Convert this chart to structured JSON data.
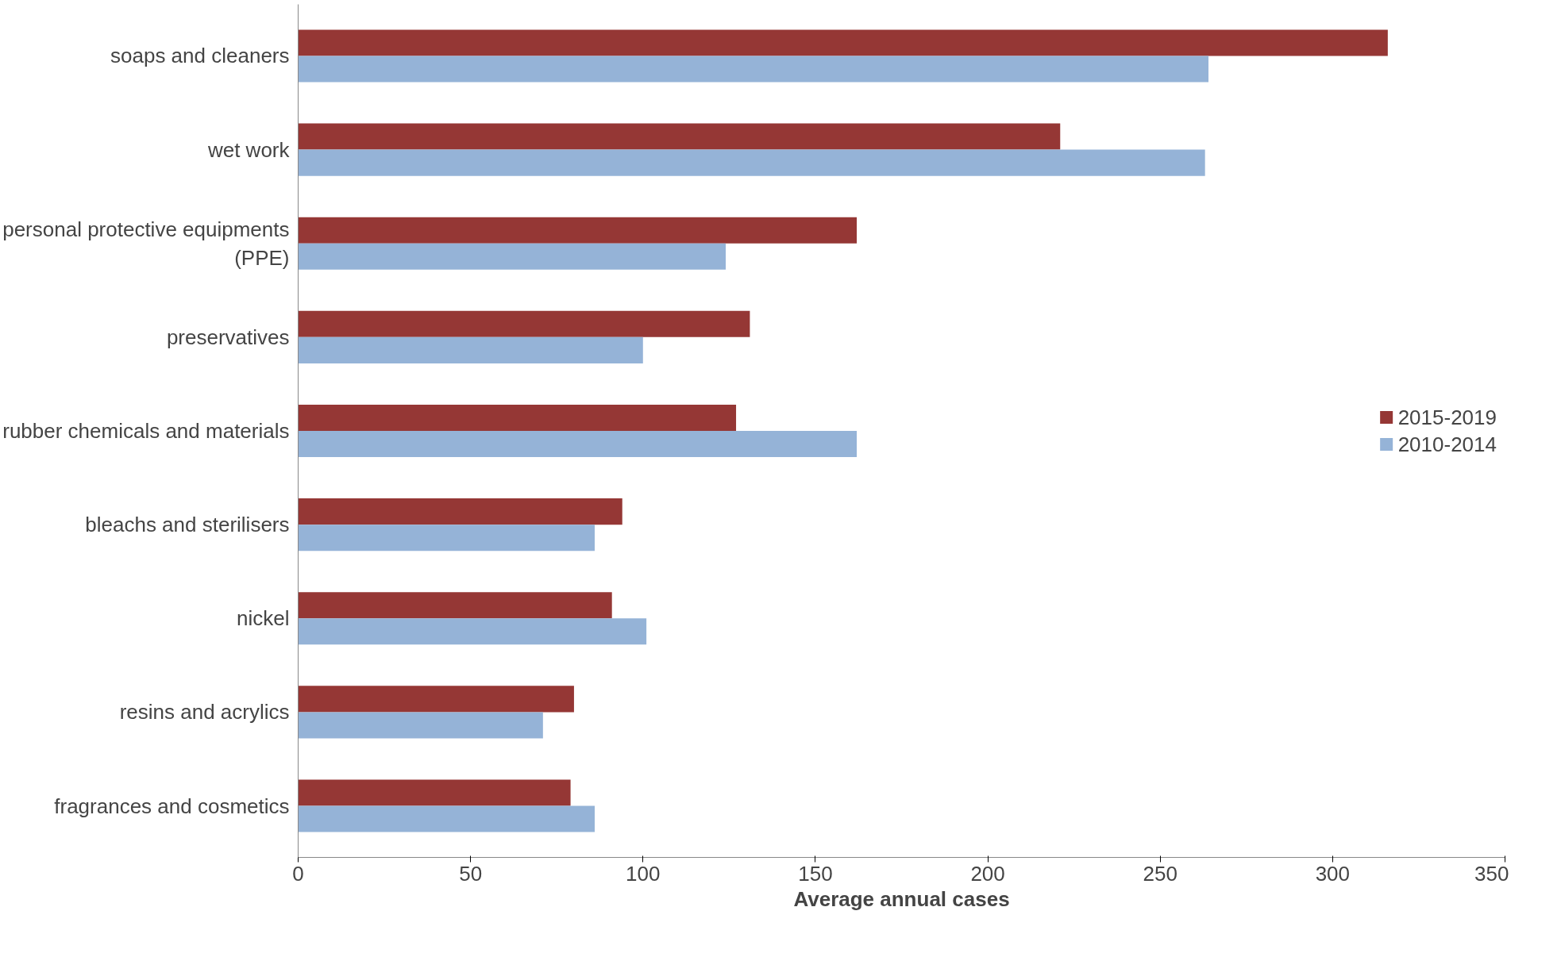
{
  "chart_data": {
    "type": "bar",
    "orientation": "horizontal",
    "xlabel": "Average annual cases",
    "categories": [
      "soaps and cleaners",
      "wet work",
      "personal protective equipments (PPE)",
      "preservatives",
      "rubber chemicals and materials",
      "bleachs and sterilisers",
      "nickel",
      "resins and acrylics",
      "fragrances and cosmetics"
    ],
    "series": [
      {
        "name": "2015-2019",
        "color": "#953735",
        "values": [
          316,
          221,
          162,
          131,
          127,
          94,
          91,
          80,
          79
        ]
      },
      {
        "name": "2010-2014",
        "color": "#95b3d7",
        "values": [
          264,
          263,
          124,
          100,
          162,
          86,
          101,
          71,
          86
        ]
      }
    ],
    "xlim": [
      0,
      350
    ],
    "xticks": [
      0,
      50,
      100,
      150,
      200,
      250,
      300,
      350
    ],
    "grid": false,
    "legend": "right"
  }
}
